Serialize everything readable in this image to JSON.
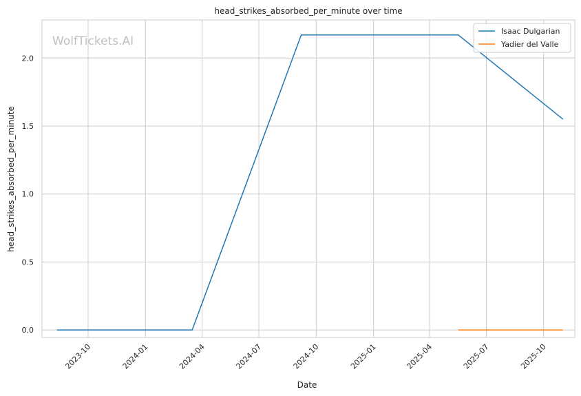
{
  "chart_data": {
    "type": "line",
    "title": "head_strikes_absorbed_per_minute over time",
    "xlabel": "Date",
    "ylabel": "head_strikes_absorbed_per_minute",
    "watermark": "WolfTickets.AI",
    "x_ticks": [
      "2023-10",
      "2024-01",
      "2024-04",
      "2024-07",
      "2024-10",
      "2025-01",
      "2025-04",
      "2025-07",
      "2025-10"
    ],
    "y_ticks": [
      "0.0",
      "0.5",
      "1.0",
      "1.5",
      "2.0"
    ],
    "ylim": [
      -0.055,
      2.28
    ],
    "xlim": [
      "2023-07-19",
      "2025-11-20"
    ],
    "grid": true,
    "legend_position": "top-right",
    "series": [
      {
        "name": "Isaac Dulgarian",
        "color": "#1f77b4",
        "points": [
          {
            "x": "2023-08-12",
            "y": 0.0
          },
          {
            "x": "2024-03-16",
            "y": 0.0
          },
          {
            "x": "2024-09-07",
            "y": 2.17
          },
          {
            "x": "2025-05-17",
            "y": 2.17
          },
          {
            "x": "2025-11-01",
            "y": 1.55
          }
        ]
      },
      {
        "name": "Yadier del Valle",
        "color": "#ff7f0e",
        "points": [
          {
            "x": "2025-05-17",
            "y": 0.0
          },
          {
            "x": "2025-11-01",
            "y": 0.0
          }
        ]
      }
    ]
  }
}
